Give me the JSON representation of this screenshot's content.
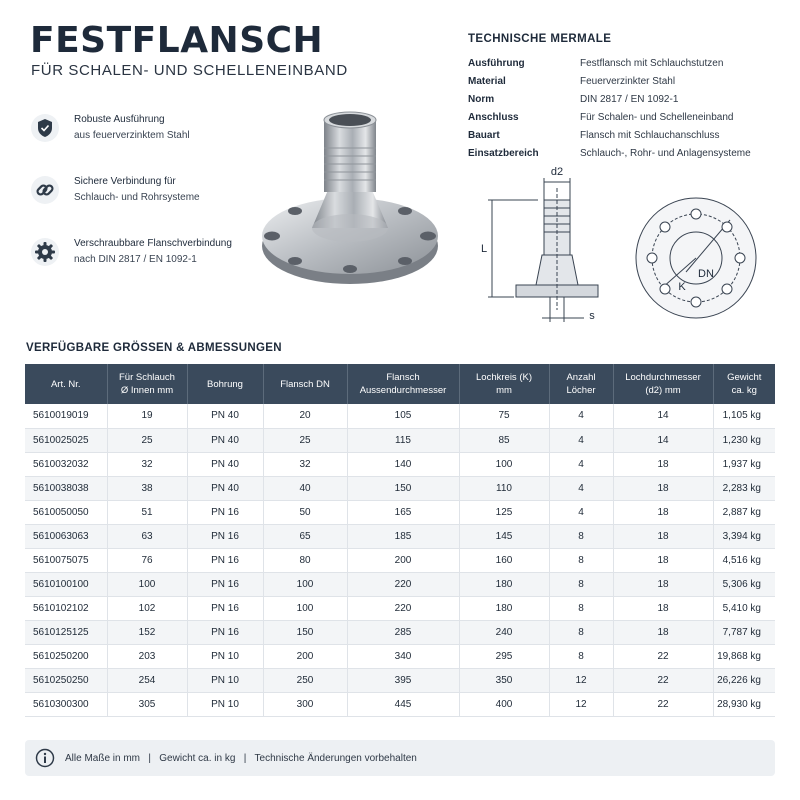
{
  "header": {
    "title": "FESTFLANSCH",
    "subtitle": "FÜR SCHALEN- UND SCHELLENEINBAND"
  },
  "features": [
    {
      "icon": "shield-icon",
      "title": "Robuste Ausführung",
      "sub": "aus feuerverzinktem Stahl"
    },
    {
      "icon": "chain-link-icon",
      "title": "Sichere Verbindung für",
      "sub": "Schlauch- und Rohrsysteme"
    },
    {
      "icon": "gear-icon",
      "title": "Verschraubbare Flanschverbindung",
      "sub": "nach DIN 2817 / EN 1092-1"
    }
  ],
  "tech": {
    "heading": "TECHNISCHE MERMALE",
    "rows": [
      {
        "k": "Ausführung",
        "v": "Festflansch mit Schlauchstutzen"
      },
      {
        "k": "Material",
        "v": "Feuerverzinkter Stahl"
      },
      {
        "k": "Norm",
        "v": "DIN 2817 / EN 1092-1"
      },
      {
        "k": "Anschluss",
        "v": "Für Schalen- und Schelleneinband"
      },
      {
        "k": "Bauart",
        "v": "Flansch mit Schlauchanschluss"
      },
      {
        "k": "Einsatzbereich",
        "v": "Schlauch-, Rohr- und Anlagensysteme"
      }
    ]
  },
  "drawing": {
    "d2": "d2",
    "L": "L",
    "s": "s",
    "K": "K",
    "DN": "DN"
  },
  "table": {
    "heading": "VERFÜGBARE GRÖSSEN & ABMESSUNGEN",
    "headers": [
      [
        "Art. Nr."
      ],
      [
        "Für Schlauch",
        "Ø Innen mm"
      ],
      [
        "Bohrung"
      ],
      [
        "Flansch DN"
      ],
      [
        "Flansch",
        "Aussendurchmesser"
      ],
      [
        "Lochkreis (K)",
        "mm"
      ],
      [
        "Anzahl",
        "Löcher"
      ],
      [
        "Lochdurchmesser",
        "(d2) mm"
      ],
      [
        "Gewicht",
        "ca. kg"
      ]
    ],
    "rows": [
      [
        "5610019019",
        "19",
        "PN 40",
        "20",
        "105",
        "75",
        "4",
        "14",
        "1,105 kg"
      ],
      [
        "5610025025",
        "25",
        "PN 40",
        "25",
        "115",
        "85",
        "4",
        "14",
        "1,230 kg"
      ],
      [
        "5610032032",
        "32",
        "PN 40",
        "32",
        "140",
        "100",
        "4",
        "18",
        "1,937 kg"
      ],
      [
        "5610038038",
        "38",
        "PN 40",
        "40",
        "150",
        "110",
        "4",
        "18",
        "2,283 kg"
      ],
      [
        "5610050050",
        "51",
        "PN 16",
        "50",
        "165",
        "125",
        "4",
        "18",
        "2,887 kg"
      ],
      [
        "5610063063",
        "63",
        "PN 16",
        "65",
        "185",
        "145",
        "8",
        "18",
        "3,394 kg"
      ],
      [
        "5610075075",
        "76",
        "PN 16",
        "80",
        "200",
        "160",
        "8",
        "18",
        "4,516 kg"
      ],
      [
        "5610100100",
        "100",
        "PN 16",
        "100",
        "220",
        "180",
        "8",
        "18",
        "5,306 kg"
      ],
      [
        "5610102102",
        "102",
        "PN 16",
        "100",
        "220",
        "180",
        "8",
        "18",
        "5,410 kg"
      ],
      [
        "5610125125",
        "152",
        "PN 16",
        "150",
        "285",
        "240",
        "8",
        "18",
        "7,787 kg"
      ],
      [
        "5610250200",
        "203",
        "PN 10",
        "200",
        "340",
        "295",
        "8",
        "22",
        "19,868 kg"
      ],
      [
        "5610250250",
        "254",
        "PN 10",
        "250",
        "395",
        "350",
        "12",
        "22",
        "26,226 kg"
      ],
      [
        "5610300300",
        "305",
        "PN 10",
        "300",
        "445",
        "400",
        "12",
        "22",
        "28,930 kg"
      ]
    ]
  },
  "footer": {
    "icon": "info-icon",
    "text": "Alle Maße in mm   |   Gewicht ca. in kg   |   Technische Änderungen vorbehalten"
  }
}
